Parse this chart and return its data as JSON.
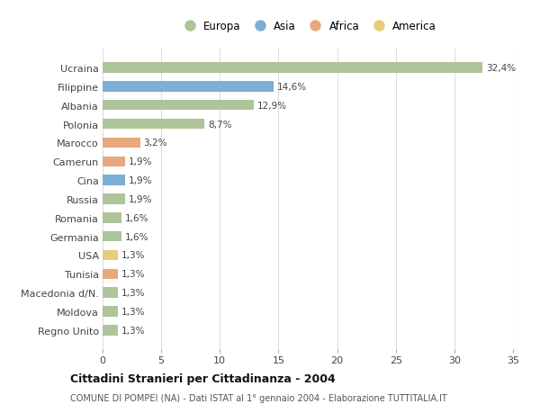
{
  "categories": [
    "Ucraina",
    "Filippine",
    "Albania",
    "Polonia",
    "Marocco",
    "Camerun",
    "Cina",
    "Russia",
    "Romania",
    "Germania",
    "USA",
    "Tunisia",
    "Macedonia d/N.",
    "Moldova",
    "Regno Unito"
  ],
  "values": [
    32.4,
    14.6,
    12.9,
    8.7,
    3.2,
    1.9,
    1.9,
    1.9,
    1.6,
    1.6,
    1.3,
    1.3,
    1.3,
    1.3,
    1.3
  ],
  "labels": [
    "32,4%",
    "14,6%",
    "12,9%",
    "8,7%",
    "3,2%",
    "1,9%",
    "1,9%",
    "1,9%",
    "1,6%",
    "1,6%",
    "1,3%",
    "1,3%",
    "1,3%",
    "1,3%",
    "1,3%"
  ],
  "continents": [
    "Europa",
    "Asia",
    "Europa",
    "Europa",
    "Africa",
    "Africa",
    "Asia",
    "Europa",
    "Europa",
    "Europa",
    "America",
    "Africa",
    "Europa",
    "Europa",
    "Europa"
  ],
  "continent_colors": {
    "Europa": "#aec49a",
    "Asia": "#7bafd4",
    "Africa": "#e8a87c",
    "America": "#e8cc7a"
  },
  "legend_order": [
    "Europa",
    "Asia",
    "Africa",
    "America"
  ],
  "bg_color": "#ffffff",
  "grid_color": "#dddddd",
  "title": "Cittadini Stranieri per Cittadinanza - 2004",
  "subtitle": "COMUNE DI POMPEI (NA) - Dati ISTAT al 1° gennaio 2004 - Elaborazione TUTTITALIA.IT",
  "xlim": [
    0,
    35
  ],
  "xticks": [
    0,
    5,
    10,
    15,
    20,
    25,
    30,
    35
  ]
}
